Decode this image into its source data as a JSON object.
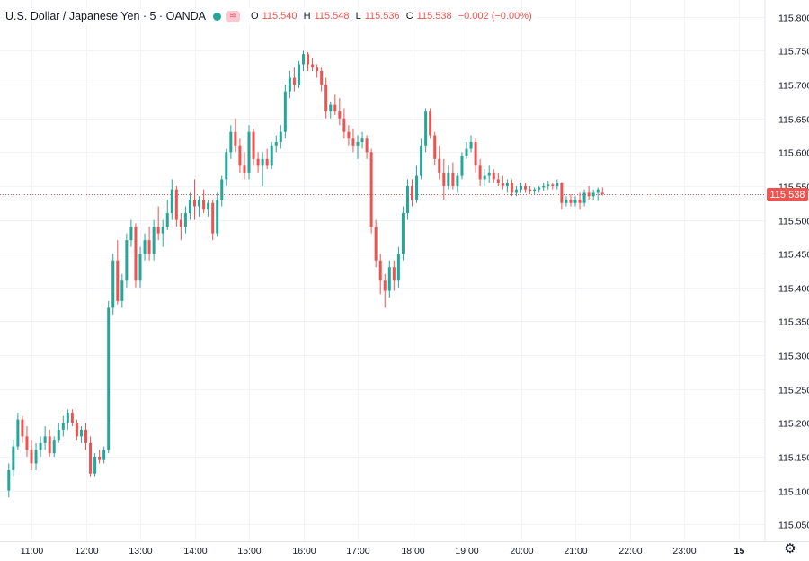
{
  "header": {
    "symbol_title": "U.S. Dollar / Japanese Yen · 5 · OANDA",
    "stream_icon": "wave-icon",
    "ohlc": {
      "o_label": "O",
      "o": "115.540",
      "h_label": "H",
      "h": "115.548",
      "l_label": "L",
      "l": "115.536",
      "c_label": "C",
      "c": "115.538",
      "change": "−0.002 (−0.00%)"
    }
  },
  "colors": {
    "up": "#26a69a",
    "down": "#ef5350",
    "grid": "#f0f3fa",
    "price_line": "#ef5350"
  },
  "chart_data": {
    "type": "candlestick",
    "timeframe_minutes": 5,
    "grid": true,
    "y_axis": {
      "position": "right",
      "ylim": [
        115.025,
        115.825
      ],
      "ticks": [
        "115.050",
        "115.100",
        "115.150",
        "115.200",
        "115.250",
        "115.300",
        "115.350",
        "115.400",
        "115.450",
        "115.500",
        "115.550",
        "115.600",
        "115.650",
        "115.700",
        "115.750",
        "115.800"
      ]
    },
    "x_axis": {
      "ticks": [
        "11:00",
        "12:00",
        "13:00",
        "14:00",
        "15:00",
        "16:00",
        "17:00",
        "18:00",
        "19:00",
        "20:00",
        "21:00",
        "22:00",
        "23:00",
        "15"
      ]
    },
    "last_price": "115.538",
    "ohlc": [
      [
        115.1,
        115.14,
        115.09,
        115.13
      ],
      [
        115.13,
        115.175,
        115.12,
        115.165
      ],
      [
        115.165,
        115.215,
        115.16,
        115.205
      ],
      [
        115.205,
        115.21,
        115.17,
        115.18
      ],
      [
        115.18,
        115.195,
        115.15,
        115.16
      ],
      [
        115.16,
        115.175,
        115.13,
        115.14
      ],
      [
        115.14,
        115.17,
        115.13,
        115.16
      ],
      [
        115.16,
        115.18,
        115.15,
        115.17
      ],
      [
        115.17,
        115.195,
        115.16,
        115.18
      ],
      [
        115.18,
        115.19,
        115.15,
        115.155
      ],
      [
        115.155,
        115.18,
        115.15,
        115.175
      ],
      [
        115.175,
        115.2,
        115.17,
        115.19
      ],
      [
        115.19,
        115.21,
        115.18,
        115.2
      ],
      [
        115.2,
        115.22,
        115.19,
        115.215
      ],
      [
        115.215,
        115.22,
        115.195,
        115.2
      ],
      [
        115.2,
        115.205,
        115.175,
        115.18
      ],
      [
        115.18,
        115.195,
        115.17,
        115.19
      ],
      [
        115.19,
        115.2,
        115.16,
        115.17
      ],
      [
        115.17,
        115.18,
        115.12,
        115.125
      ],
      [
        115.125,
        115.155,
        115.12,
        115.15
      ],
      [
        115.15,
        115.16,
        115.14,
        115.145
      ],
      [
        115.145,
        115.165,
        115.14,
        115.16
      ],
      [
        115.16,
        115.38,
        115.155,
        115.37
      ],
      [
        115.37,
        115.45,
        115.36,
        115.44
      ],
      [
        115.44,
        115.47,
        115.375,
        115.38
      ],
      [
        115.38,
        115.42,
        115.37,
        115.41
      ],
      [
        115.41,
        115.48,
        115.4,
        115.47
      ],
      [
        115.47,
        115.5,
        115.46,
        115.49
      ],
      [
        115.49,
        115.495,
        115.4,
        115.41
      ],
      [
        115.41,
        115.46,
        115.4,
        115.45
      ],
      [
        115.45,
        115.48,
        115.44,
        115.47
      ],
      [
        115.47,
        115.49,
        115.44,
        115.45
      ],
      [
        115.45,
        115.5,
        115.44,
        115.49
      ],
      [
        115.49,
        115.52,
        115.47,
        115.48
      ],
      [
        115.48,
        115.5,
        115.46,
        115.49
      ],
      [
        115.49,
        115.53,
        115.485,
        115.51
      ],
      [
        115.51,
        115.56,
        115.5,
        115.545
      ],
      [
        115.545,
        115.55,
        115.49,
        115.5
      ],
      [
        115.5,
        115.51,
        115.47,
        115.49
      ],
      [
        115.49,
        115.52,
        115.48,
        115.51
      ],
      [
        115.51,
        115.54,
        115.5,
        115.53
      ],
      [
        115.53,
        115.56,
        115.5,
        115.52
      ],
      [
        115.52,
        115.535,
        115.505,
        115.53
      ],
      [
        115.53,
        115.545,
        115.51,
        115.515
      ],
      [
        115.515,
        115.53,
        115.505,
        115.525
      ],
      [
        115.525,
        115.53,
        115.47,
        115.48
      ],
      [
        115.48,
        115.54,
        115.475,
        115.53
      ],
      [
        115.53,
        115.565,
        115.52,
        115.56
      ],
      [
        115.56,
        115.605,
        115.55,
        115.6
      ],
      [
        115.6,
        115.64,
        115.59,
        115.63
      ],
      [
        115.63,
        115.65,
        115.6,
        115.61
      ],
      [
        115.61,
        115.62,
        115.57,
        115.58
      ],
      [
        115.58,
        115.6,
        115.56,
        115.57
      ],
      [
        115.57,
        115.64,
        115.56,
        115.63
      ],
      [
        115.63,
        115.635,
        115.58,
        115.59
      ],
      [
        115.59,
        115.6,
        115.57,
        115.58
      ],
      [
        115.58,
        115.6,
        115.55,
        115.59
      ],
      [
        115.59,
        115.605,
        115.575,
        115.58
      ],
      [
        115.58,
        115.615,
        115.575,
        115.61
      ],
      [
        115.61,
        115.625,
        115.6,
        115.615
      ],
      [
        115.615,
        115.64,
        115.605,
        115.63
      ],
      [
        115.63,
        115.7,
        115.62,
        115.69
      ],
      [
        115.69,
        115.72,
        115.68,
        115.71
      ],
      [
        115.71,
        115.725,
        115.69,
        115.7
      ],
      [
        115.7,
        115.735,
        115.695,
        115.73
      ],
      [
        115.73,
        115.75,
        115.72,
        115.745
      ],
      [
        115.745,
        115.748,
        115.72,
        115.73
      ],
      [
        115.73,
        115.74,
        115.72,
        115.725
      ],
      [
        115.725,
        115.73,
        115.71,
        115.72
      ],
      [
        115.72,
        115.725,
        115.69,
        115.7
      ],
      [
        115.7,
        115.71,
        115.65,
        115.66
      ],
      [
        115.66,
        115.675,
        115.65,
        115.67
      ],
      [
        115.67,
        115.685,
        115.655,
        115.66
      ],
      [
        115.66,
        115.68,
        115.64,
        115.65
      ],
      [
        115.65,
        115.665,
        115.62,
        115.63
      ],
      [
        115.63,
        115.64,
        115.61,
        115.62
      ],
      [
        115.62,
        115.635,
        115.6,
        115.61
      ],
      [
        115.61,
        115.625,
        115.59,
        115.615
      ],
      [
        115.615,
        115.63,
        115.605,
        115.62
      ],
      [
        115.62,
        115.625,
        115.59,
        115.6
      ],
      [
        115.6,
        115.605,
        115.48,
        115.49
      ],
      [
        115.49,
        115.5,
        115.43,
        115.44
      ],
      [
        115.44,
        115.45,
        115.39,
        115.41
      ],
      [
        115.41,
        115.42,
        115.37,
        115.395
      ],
      [
        115.395,
        115.44,
        115.385,
        115.43
      ],
      [
        115.43,
        115.44,
        115.395,
        115.41
      ],
      [
        115.41,
        115.46,
        115.4,
        115.45
      ],
      [
        115.45,
        115.52,
        115.44,
        115.51
      ],
      [
        115.51,
        115.56,
        115.5,
        115.55
      ],
      [
        115.55,
        115.56,
        115.52,
        115.53
      ],
      [
        115.53,
        115.58,
        115.525,
        115.565
      ],
      [
        115.565,
        115.62,
        115.56,
        115.61
      ],
      [
        115.61,
        115.665,
        115.6,
        115.66
      ],
      [
        115.66,
        115.665,
        115.62,
        115.625
      ],
      [
        115.625,
        115.63,
        115.58,
        115.59
      ],
      [
        115.59,
        115.61,
        115.56,
        115.57
      ],
      [
        115.57,
        115.59,
        115.53,
        115.55
      ],
      [
        115.55,
        115.58,
        115.545,
        115.57
      ],
      [
        115.57,
        115.585,
        115.545,
        115.55
      ],
      [
        115.55,
        115.57,
        115.54,
        115.565
      ],
      [
        115.565,
        115.6,
        115.56,
        115.595
      ],
      [
        115.595,
        115.615,
        115.59,
        115.605
      ],
      [
        115.605,
        115.625,
        115.6,
        115.615
      ],
      [
        115.615,
        115.62,
        115.57,
        115.58
      ],
      [
        115.58,
        115.59,
        115.55,
        115.56
      ],
      [
        115.56,
        115.575,
        115.55,
        115.565
      ],
      [
        115.565,
        115.58,
        115.555,
        115.57
      ],
      [
        115.57,
        115.575,
        115.555,
        115.56
      ],
      [
        115.56,
        115.57,
        115.55,
        115.555
      ],
      [
        115.555,
        115.565,
        115.545,
        115.55
      ],
      [
        115.55,
        115.56,
        115.54,
        115.555
      ],
      [
        115.555,
        115.56,
        115.535,
        115.54
      ],
      [
        115.54,
        115.55,
        115.535,
        115.545
      ],
      [
        115.545,
        115.555,
        115.54,
        115.55
      ],
      [
        115.55,
        115.555,
        115.54,
        115.545
      ],
      [
        115.545,
        115.55,
        115.538,
        115.542
      ],
      [
        115.542,
        115.548,
        115.538,
        115.545
      ],
      [
        115.545,
        115.55,
        115.54,
        115.548
      ],
      [
        115.548,
        115.555,
        115.543,
        115.55
      ],
      [
        115.55,
        115.558,
        115.545,
        115.552
      ],
      [
        115.552,
        115.555,
        115.545,
        115.55
      ],
      [
        115.55,
        115.56,
        115.545,
        115.555
      ],
      [
        115.555,
        115.556,
        115.515,
        115.525
      ],
      [
        115.525,
        115.535,
        115.52,
        115.53
      ],
      [
        115.53,
        115.538,
        115.52,
        115.525
      ],
      [
        115.525,
        115.535,
        115.52,
        115.53
      ],
      [
        115.53,
        115.54,
        115.515,
        115.525
      ],
      [
        115.525,
        115.545,
        115.52,
        115.54
      ],
      [
        115.54,
        115.55,
        115.53,
        115.535
      ],
      [
        115.535,
        115.545,
        115.53,
        115.54
      ],
      [
        115.54,
        115.548,
        115.528,
        115.545
      ],
      [
        115.54,
        115.548,
        115.536,
        115.538
      ]
    ]
  }
}
